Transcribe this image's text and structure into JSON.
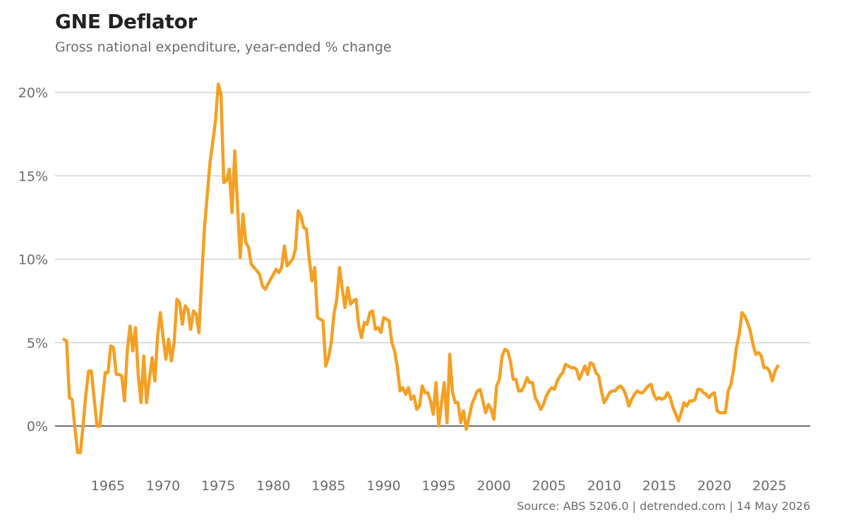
{
  "header": {
    "title": "GNE Deflator",
    "subtitle": "Gross national expenditure, year-ended % change"
  },
  "footer": {
    "source": "Source: ABS 5206.0 | detrended.com | 14 May 2026"
  },
  "colors": {
    "line": "#F4A024",
    "grid": "#dcdcdc",
    "zero_line": "#6e6e6e",
    "text_muted": "#6b6b6b"
  },
  "chart_data": {
    "type": "line",
    "title": "GNE Deflator",
    "subtitle": "Gross national expenditure, year-ended % change",
    "xlabel": "",
    "ylabel": "",
    "xlim": [
      1960.2,
      2028.7
    ],
    "ylim": [
      -2,
      21
    ],
    "y_ticks": [
      0,
      5,
      10,
      15,
      20
    ],
    "y_tick_labels": [
      "0%",
      "5%",
      "10%",
      "15%",
      "20%"
    ],
    "x_ticks": [
      1965,
      1970,
      1975,
      1980,
      1985,
      1990,
      1995,
      2000,
      2005,
      2010,
      2015,
      2020,
      2025
    ],
    "x_tick_labels": [
      "1965",
      "1970",
      "1975",
      "1980",
      "1985",
      "1990",
      "1995",
      "2000",
      "2005",
      "2010",
      "2015",
      "2020",
      "2025"
    ],
    "grid": true,
    "legend": "none",
    "series": [
      {
        "x": [
          1961.0,
          1961.25,
          1961.5,
          1961.75,
          1962.0,
          1962.25,
          1962.5,
          1962.75,
          1963.0,
          1963.25,
          1963.5,
          1963.75,
          1964.0,
          1964.25,
          1964.5,
          1964.75,
          1965.0,
          1965.25,
          1965.5,
          1965.75,
          1966.0,
          1966.25,
          1966.5,
          1966.75,
          1967.0,
          1967.25,
          1967.5,
          1967.75,
          1968.0,
          1968.25,
          1968.5,
          1968.75,
          1969.0,
          1969.25,
          1969.5,
          1969.75,
          1970.0,
          1970.25,
          1970.5,
          1970.75,
          1971.0,
          1971.25,
          1971.5,
          1971.75,
          1972.0,
          1972.25,
          1972.5,
          1972.75,
          1973.0,
          1973.25,
          1973.5,
          1973.75,
          1974.0,
          1974.25,
          1974.5,
          1974.75,
          1975.0,
          1975.25,
          1975.5,
          1975.75,
          1976.0,
          1976.25,
          1976.5,
          1976.75,
          1977.0,
          1977.25,
          1977.5,
          1977.75,
          1978.0,
          1978.25,
          1978.5,
          1978.75,
          1979.0,
          1979.25,
          1979.5,
          1979.75,
          1980.0,
          1980.25,
          1980.5,
          1980.75,
          1981.0,
          1981.25,
          1981.5,
          1981.75,
          1982.0,
          1982.25,
          1982.5,
          1982.75,
          1983.0,
          1983.25,
          1983.5,
          1983.75,
          1984.0,
          1984.25,
          1984.5,
          1984.75,
          1985.0,
          1985.25,
          1985.5,
          1985.75,
          1986.0,
          1986.25,
          1986.5,
          1986.75,
          1987.0,
          1987.25,
          1987.5,
          1987.75,
          1988.0,
          1988.25,
          1988.5,
          1988.75,
          1989.0,
          1989.25,
          1989.5,
          1989.75,
          1990.0,
          1990.25,
          1990.5,
          1990.75,
          1991.0,
          1991.25,
          1991.5,
          1991.75,
          1992.0,
          1992.25,
          1992.5,
          1992.75,
          1993.0,
          1993.25,
          1993.5,
          1993.75,
          1994.0,
          1994.25,
          1994.5,
          1994.75,
          1995.0,
          1995.25,
          1995.5,
          1995.75,
          1996.0,
          1996.25,
          1996.5,
          1996.75,
          1997.0,
          1997.25,
          1997.5,
          1997.75,
          1998.0,
          1998.25,
          1998.5,
          1998.75,
          1999.0,
          1999.25,
          1999.5,
          1999.75,
          2000.0,
          2000.25,
          2000.5,
          2000.75,
          2001.0,
          2001.25,
          2001.5,
          2001.75,
          2002.0,
          2002.25,
          2002.5,
          2002.75,
          2003.0,
          2003.25,
          2003.5,
          2003.75,
          2004.0,
          2004.25,
          2004.5,
          2004.75,
          2005.0,
          2005.25,
          2005.5,
          2005.75,
          2006.0,
          2006.25,
          2006.5,
          2006.75,
          2007.0,
          2007.25,
          2007.5,
          2007.75,
          2008.0,
          2008.25,
          2008.5,
          2008.75,
          2009.0,
          2009.25,
          2009.5,
          2009.75,
          2010.0,
          2010.25,
          2010.5,
          2010.75,
          2011.0,
          2011.25,
          2011.5,
          2011.75,
          2012.0,
          2012.25,
          2012.5,
          2012.75,
          2013.0,
          2013.25,
          2013.5,
          2013.75,
          2014.0,
          2014.25,
          2014.5,
          2014.75,
          2015.0,
          2015.25,
          2015.5,
          2015.75,
          2016.0,
          2016.25,
          2016.5,
          2016.75,
          2017.0,
          2017.25,
          2017.5,
          2017.75,
          2018.0,
          2018.25,
          2018.5,
          2018.75,
          2019.0,
          2019.25,
          2019.5,
          2019.75,
          2020.0,
          2020.25,
          2020.5,
          2020.75,
          2021.0,
          2021.25,
          2021.5,
          2021.75,
          2022.0,
          2022.25,
          2022.5,
          2022.75,
          2023.0,
          2023.25,
          2023.5,
          2023.75,
          2024.0,
          2024.25,
          2024.5,
          2024.75,
          2025.0,
          2025.25,
          2025.5,
          2025.75
        ],
        "y": [
          5.2,
          5.1,
          1.7,
          1.6,
          -0.1,
          -1.6,
          -1.6,
          0.1,
          1.9,
          3.3,
          3.3,
          1.6,
          0.0,
          0.0,
          1.6,
          3.2,
          3.2,
          4.8,
          4.7,
          3.1,
          3.1,
          3.0,
          1.5,
          4.5,
          6.0,
          4.5,
          5.9,
          3.0,
          1.4,
          4.2,
          1.4,
          2.8,
          4.1,
          2.7,
          5.4,
          6.8,
          5.3,
          4.0,
          5.2,
          3.9,
          5.0,
          7.6,
          7.4,
          6.1,
          7.2,
          7.0,
          5.8,
          6.9,
          6.7,
          5.6,
          8.9,
          11.9,
          13.8,
          15.8,
          17.0,
          18.3,
          20.5,
          19.9,
          14.6,
          14.7,
          15.4,
          12.8,
          16.5,
          13.2,
          10.1,
          12.7,
          11.0,
          10.7,
          9.7,
          9.5,
          9.3,
          9.1,
          8.4,
          8.2,
          8.5,
          8.8,
          9.1,
          9.4,
          9.2,
          9.5,
          10.8,
          9.6,
          9.8,
          10.0,
          10.6,
          12.9,
          12.6,
          11.9,
          11.8,
          10.0,
          8.7,
          9.5,
          6.5,
          6.4,
          6.3,
          3.6,
          4.1,
          5.0,
          6.7,
          7.6,
          9.5,
          8.2,
          7.1,
          8.3,
          7.3,
          7.5,
          7.6,
          6.0,
          5.3,
          6.2,
          6.1,
          6.8,
          6.9,
          5.8,
          5.9,
          5.6,
          6.5,
          6.4,
          6.3,
          5.0,
          4.5,
          3.5,
          2.1,
          2.3,
          1.9,
          2.3,
          1.6,
          1.8,
          1.0,
          1.2,
          2.4,
          2.0,
          2.0,
          1.5,
          0.7,
          2.6,
          0.0,
          1.4,
          2.6,
          0.2,
          4.3,
          2.0,
          1.4,
          1.4,
          0.2,
          0.9,
          -0.2,
          0.5,
          1.3,
          1.7,
          2.1,
          2.2,
          1.5,
          0.8,
          1.3,
          1.0,
          0.4,
          2.4,
          2.8,
          4.2,
          4.6,
          4.5,
          3.9,
          2.8,
          2.8,
          2.1,
          2.1,
          2.4,
          2.9,
          2.6,
          2.6,
          1.7,
          1.4,
          1.0,
          1.3,
          1.8,
          2.1,
          2.3,
          2.2,
          2.7,
          3.0,
          3.2,
          3.7,
          3.6,
          3.5,
          3.5,
          3.4,
          2.8,
          3.2,
          3.6,
          3.1,
          3.8,
          3.7,
          3.2,
          3.0,
          2.1,
          1.4,
          1.7,
          2.0,
          2.1,
          2.1,
          2.3,
          2.4,
          2.2,
          1.8,
          1.2,
          1.6,
          1.9,
          2.1,
          2.0,
          2.0,
          2.2,
          2.4,
          2.5,
          1.9,
          1.6,
          1.7,
          1.6,
          1.7,
          2.0,
          1.7,
          1.1,
          0.7,
          0.3,
          0.8,
          1.4,
          1.2,
          1.5,
          1.5,
          1.6,
          2.2,
          2.2,
          2.0,
          1.9,
          1.7,
          1.9,
          2.0,
          0.9,
          0.8,
          0.8,
          0.8,
          2.1,
          2.5,
          3.4,
          4.7,
          5.5,
          6.8,
          6.6,
          6.2,
          5.7,
          4.9,
          4.3,
          4.4,
          4.2,
          3.5,
          3.5,
          3.3,
          2.7,
          3.3,
          3.6
        ]
      }
    ]
  }
}
